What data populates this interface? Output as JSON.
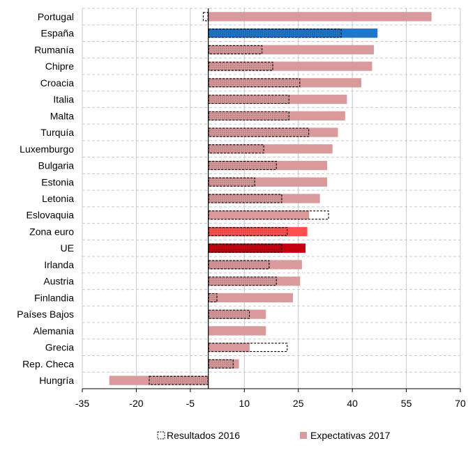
{
  "chart_data": {
    "type": "bar",
    "orientation": "horizontal",
    "title": "",
    "xlabel": "",
    "ylabel": "",
    "xlim": [
      -35,
      70
    ],
    "xticks": [
      -35,
      -20,
      -5,
      10,
      25,
      40,
      55,
      70
    ],
    "grid": true,
    "legend_position": "bottom",
    "categories": [
      "Portugal",
      "España",
      "Rumanía",
      "Chipre",
      "Croacia",
      "Italia",
      "Malta",
      "Turquía",
      "Luxemburgo",
      "Bulgaria",
      "Estonia",
      "Letonia",
      "Eslovaquia",
      "Zona euro",
      "UE",
      "Irlanda",
      "Austria",
      "Finlandia",
      "Países Bajos",
      "Alemania",
      "Grecia",
      "Rep. Checa",
      "Hungría"
    ],
    "series": [
      {
        "name": "Resultados 2016",
        "style": "dashed-outline",
        "values": [
          -1.5,
          37,
          15,
          18,
          25.5,
          22.5,
          22.5,
          28,
          15.5,
          19,
          13,
          20.5,
          33.5,
          22,
          20.5,
          17,
          19,
          2.5,
          11.5,
          null,
          22,
          7,
          -16.5
        ]
      },
      {
        "name": "Expectativas 2017",
        "style": "filled",
        "values": [
          62,
          47,
          46,
          45.5,
          42.5,
          38.5,
          38,
          36,
          34.5,
          33,
          33,
          31,
          28,
          27.5,
          27,
          26,
          25.5,
          23.5,
          16,
          16,
          11.5,
          8.5,
          -27.5
        ]
      }
    ],
    "colors": {
      "default": "#d99a9c",
      "España": "#1f77c9",
      "Zona euro": "#ff4f4f",
      "UE": "#c40010",
      "grid": "#c8c8c8"
    }
  }
}
